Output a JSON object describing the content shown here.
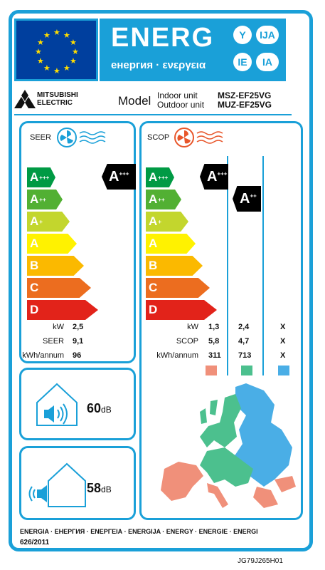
{
  "header": {
    "energy_word": "ENERG",
    "energy_sub": "енергия · ενεργεια",
    "lang_badges": [
      "Y",
      "IJA",
      "IE",
      "IA"
    ]
  },
  "brand": {
    "line1": "MITSUBISHI",
    "line2": "ELECTRIC"
  },
  "model": {
    "label": "Model",
    "indoor_label": "Indoor unit",
    "outdoor_label": "Outdoor unit",
    "indoor_value": "MSZ-EF25VG",
    "outdoor_value": "MUZ-EF25VG"
  },
  "scale": [
    "A+++",
    "A++",
    "A+",
    "A",
    "B",
    "C",
    "D"
  ],
  "scale_colors": [
    "#009a44",
    "#52b033",
    "#c3d62d",
    "#fff200",
    "#fbb900",
    "#ec6d1f",
    "#e2231a"
  ],
  "seer": {
    "title": "SEER",
    "rating": "A+++",
    "rows": [
      {
        "label": "kW",
        "value": "2,5"
      },
      {
        "label": "SEER",
        "value": "9,1"
      },
      {
        "label": "kWh/annum",
        "value": "96"
      }
    ]
  },
  "scop": {
    "title": "SCOP",
    "ratings": [
      "A+++",
      "A++"
    ],
    "rows": [
      {
        "label": "kW",
        "values": [
          "1,3",
          "2,4",
          "X"
        ]
      },
      {
        "label": "SCOP",
        "values": [
          "5,8",
          "4,7",
          "X"
        ]
      },
      {
        "label": "kWh/annum",
        "values": [
          "311",
          "713",
          "X"
        ]
      }
    ],
    "zone_colors": [
      "#f0907a",
      "#4cc08e",
      "#4aaee6"
    ]
  },
  "noise": {
    "indoor": {
      "value": "60",
      "unit": "dB"
    },
    "outdoor": {
      "value": "58",
      "unit": "dB"
    }
  },
  "footer": {
    "languages": "ENERGIA · ЕНЕРГИЯ · ΕΝΕΡΓΕΙΑ · ENERGIJA · ENERGY · ENERGIE · ENERGI",
    "regulation": "626/2011",
    "code": "JG79J265H01"
  }
}
